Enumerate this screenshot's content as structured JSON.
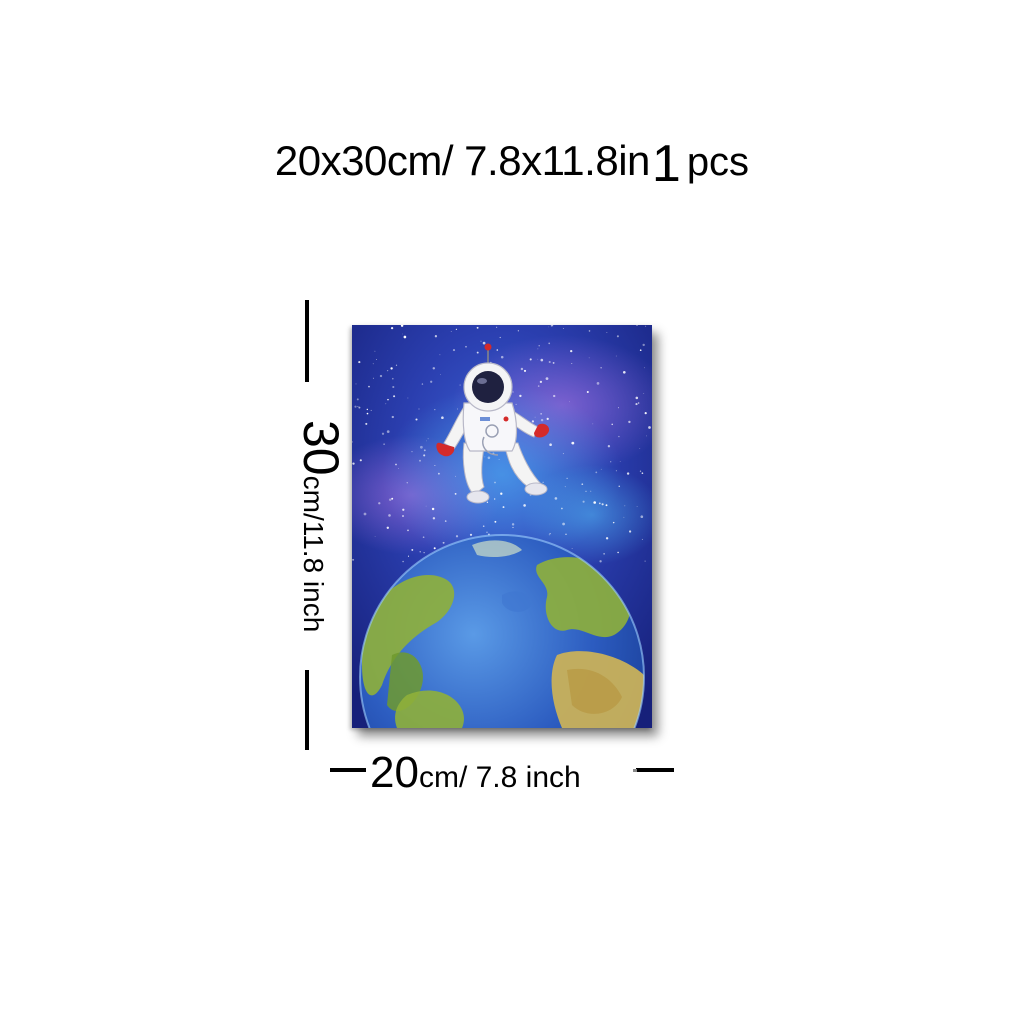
{
  "header": {
    "size_text": "20x30cm/ 7.8x11.8in",
    "quantity_number": "1",
    "quantity_unit": "pcs"
  },
  "height_label": {
    "value": "30",
    "unit": "cm/11.8 inch"
  },
  "width_label": {
    "value": "20",
    "unit_cm": "cm/",
    "unit_inch": " 7.8 inch"
  },
  "colors": {
    "background": "#ffffff",
    "space_dark": "#1a2a8a",
    "space_purple": "#5a3a9c",
    "ocean": "#2d5fbf",
    "land": "#8fb03a",
    "glove": "#d42a2a"
  },
  "painting": {
    "subject": "watercolor astronaut floating above planet earth in starry space"
  }
}
